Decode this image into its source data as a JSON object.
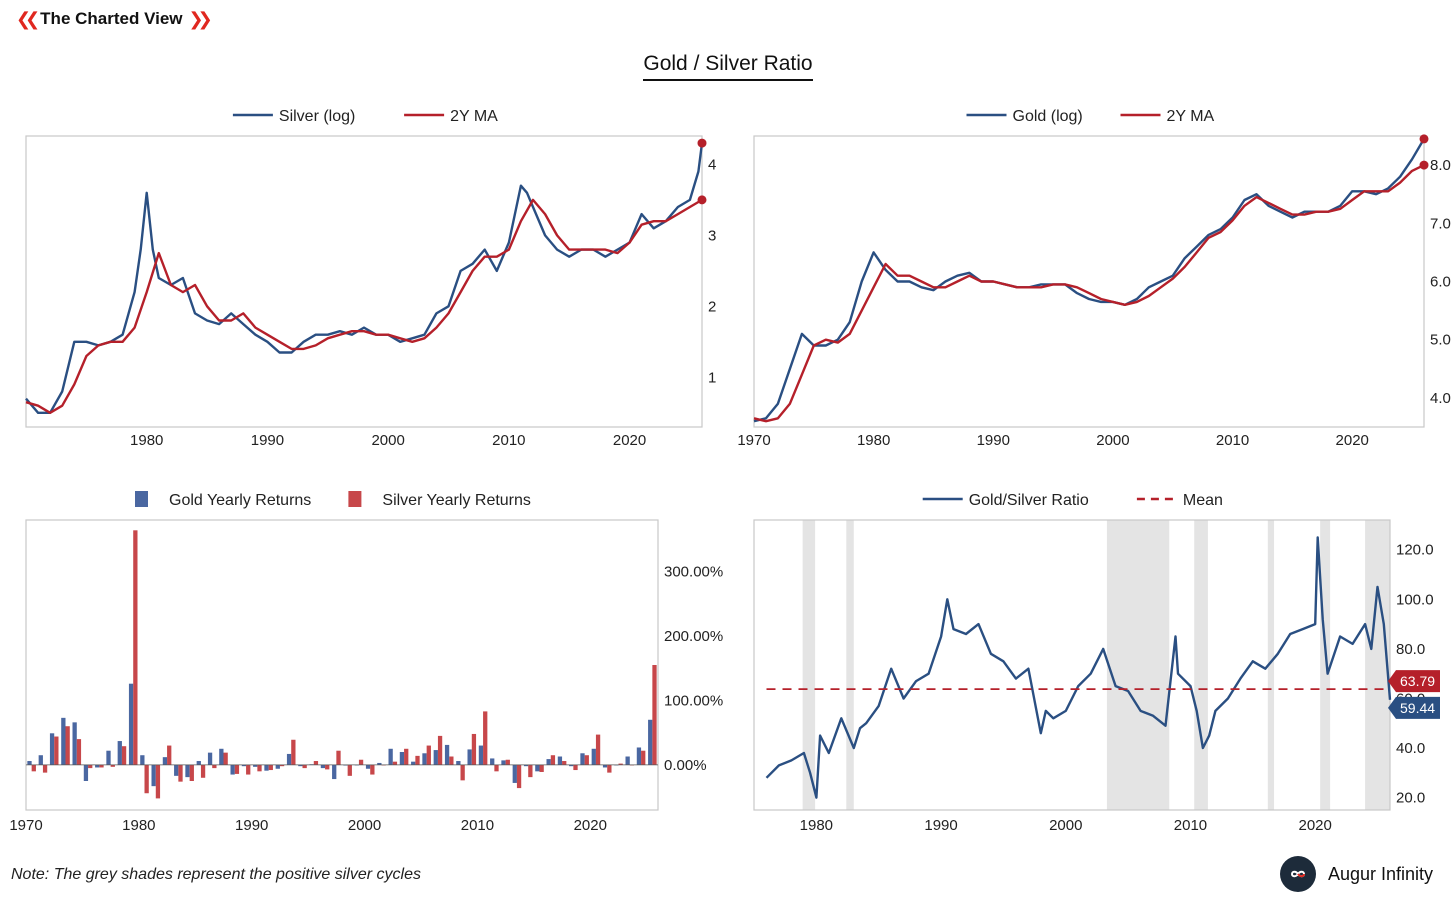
{
  "brand": {
    "name": "The Charted View",
    "accent": "#e0271f"
  },
  "title": "Gold / Silver Ratio",
  "note": "Note: The grey shades represent the positive silver cycles",
  "logo": {
    "name": "Augur Infinity"
  },
  "colors": {
    "blue": "#2a4f82",
    "red": "#b5202a",
    "bar_blue": "#4a67a1",
    "bar_red": "#c7474a",
    "shade": "#e4e4e4",
    "frame": "#c8c8c8"
  },
  "chart_data": [
    {
      "type": "line",
      "legend": [
        "Silver (log)",
        "2Y MA"
      ],
      "xlim": [
        1970,
        2026
      ],
      "ylim": [
        0.3,
        4.4
      ],
      "xticks": [
        1980,
        1990,
        2000,
        2010,
        2020
      ],
      "yticks": [
        1,
        2,
        3,
        4
      ],
      "grid": false,
      "legend_position": "top-center",
      "series": [
        {
          "name": "Silver (log)",
          "x": [
            1970,
            1971,
            1972,
            1973,
            1974,
            1975,
            1976,
            1977,
            1978,
            1979,
            1979.5,
            1980,
            1980.5,
            1981,
            1982,
            1983,
            1984,
            1985,
            1986,
            1987,
            1988,
            1989,
            1990,
            1991,
            1992,
            1993,
            1994,
            1995,
            1996,
            1997,
            1998,
            1999,
            2000,
            2001,
            2002,
            2003,
            2004,
            2005,
            2006,
            2007,
            2008,
            2009,
            2010,
            2011,
            2011.5,
            2012,
            2013,
            2014,
            2015,
            2016,
            2017,
            2018,
            2019,
            2020,
            2021,
            2022,
            2023,
            2024,
            2025,
            2025.7,
            2026
          ],
          "values": [
            0.7,
            0.5,
            0.5,
            0.8,
            1.5,
            1.5,
            1.45,
            1.5,
            1.6,
            2.2,
            2.8,
            3.6,
            2.8,
            2.4,
            2.3,
            2.4,
            1.9,
            1.8,
            1.75,
            1.9,
            1.75,
            1.6,
            1.5,
            1.35,
            1.35,
            1.5,
            1.6,
            1.6,
            1.65,
            1.6,
            1.7,
            1.6,
            1.6,
            1.5,
            1.55,
            1.6,
            1.9,
            2.0,
            2.5,
            2.6,
            2.8,
            2.5,
            2.9,
            3.7,
            3.6,
            3.4,
            3.0,
            2.8,
            2.7,
            2.8,
            2.8,
            2.7,
            2.8,
            2.9,
            3.3,
            3.1,
            3.2,
            3.4,
            3.5,
            3.9,
            4.3
          ]
        },
        {
          "name": "2Y MA",
          "x": [
            1970,
            1971,
            1972,
            1973,
            1974,
            1975,
            1976,
            1977,
            1978,
            1979,
            1980,
            1981,
            1982,
            1983,
            1984,
            1985,
            1986,
            1987,
            1988,
            1989,
            1990,
            1991,
            1992,
            1993,
            1994,
            1995,
            1996,
            1997,
            1998,
            1999,
            2000,
            2001,
            2002,
            2003,
            2004,
            2005,
            2006,
            2007,
            2008,
            2009,
            2010,
            2011,
            2012,
            2013,
            2014,
            2015,
            2016,
            2017,
            2018,
            2019,
            2020,
            2021,
            2022,
            2023,
            2024,
            2025,
            2026
          ],
          "values": [
            0.65,
            0.6,
            0.5,
            0.6,
            0.9,
            1.3,
            1.45,
            1.5,
            1.5,
            1.7,
            2.2,
            2.75,
            2.3,
            2.2,
            2.3,
            2.0,
            1.8,
            1.8,
            1.9,
            1.7,
            1.6,
            1.5,
            1.4,
            1.4,
            1.45,
            1.55,
            1.6,
            1.65,
            1.65,
            1.6,
            1.6,
            1.55,
            1.5,
            1.55,
            1.7,
            1.9,
            2.2,
            2.5,
            2.7,
            2.7,
            2.8,
            3.2,
            3.5,
            3.3,
            3.0,
            2.8,
            2.8,
            2.8,
            2.8,
            2.75,
            2.9,
            3.15,
            3.2,
            3.2,
            3.3,
            3.4,
            3.5
          ]
        }
      ]
    },
    {
      "type": "line",
      "legend": [
        "Gold (log)",
        "2Y MA"
      ],
      "xlim": [
        1970,
        2026
      ],
      "ylim": [
        3.5,
        8.5
      ],
      "xticks": [
        1970,
        1980,
        1990,
        2000,
        2010,
        2020
      ],
      "yticks": [
        "4.0",
        "5.0",
        "6.0",
        "7.0",
        "8.0"
      ],
      "grid": false,
      "legend_position": "top-center",
      "series": [
        {
          "name": "Gold (log)",
          "x": [
            1970,
            1971,
            1972,
            1973,
            1974,
            1975,
            1976,
            1977,
            1978,
            1979,
            1980,
            1981,
            1982,
            1983,
            1984,
            1985,
            1986,
            1987,
            1988,
            1989,
            1990,
            1991,
            1992,
            1993,
            1994,
            1995,
            1996,
            1997,
            1998,
            1999,
            2000,
            2001,
            2002,
            2003,
            2004,
            2005,
            2006,
            2007,
            2008,
            2009,
            2010,
            2011,
            2012,
            2013,
            2014,
            2015,
            2016,
            2017,
            2018,
            2019,
            2020,
            2021,
            2022,
            2023,
            2024,
            2025,
            2026
          ],
          "values": [
            3.6,
            3.65,
            3.9,
            4.5,
            5.1,
            4.9,
            4.9,
            5.0,
            5.3,
            6.0,
            6.5,
            6.2,
            6.0,
            6.0,
            5.9,
            5.85,
            6.0,
            6.1,
            6.15,
            6.0,
            6.0,
            5.95,
            5.9,
            5.9,
            5.95,
            5.95,
            5.95,
            5.8,
            5.7,
            5.65,
            5.65,
            5.6,
            5.7,
            5.9,
            6.0,
            6.1,
            6.4,
            6.6,
            6.8,
            6.9,
            7.1,
            7.4,
            7.5,
            7.3,
            7.2,
            7.1,
            7.2,
            7.2,
            7.2,
            7.3,
            7.55,
            7.55,
            7.5,
            7.6,
            7.8,
            8.1,
            8.45
          ]
        },
        {
          "name": "2Y MA",
          "x": [
            1970,
            1971,
            1972,
            1973,
            1974,
            1975,
            1976,
            1977,
            1978,
            1979,
            1980,
            1981,
            1982,
            1983,
            1984,
            1985,
            1986,
            1987,
            1988,
            1989,
            1990,
            1991,
            1992,
            1993,
            1994,
            1995,
            1996,
            1997,
            1998,
            1999,
            2000,
            2001,
            2002,
            2003,
            2004,
            2005,
            2006,
            2007,
            2008,
            2009,
            2010,
            2011,
            2012,
            2013,
            2014,
            2015,
            2016,
            2017,
            2018,
            2019,
            2020,
            2021,
            2022,
            2023,
            2024,
            2025,
            2026
          ],
          "values": [
            3.65,
            3.6,
            3.65,
            3.9,
            4.4,
            4.9,
            5.0,
            4.95,
            5.1,
            5.5,
            5.9,
            6.3,
            6.1,
            6.1,
            6.0,
            5.9,
            5.9,
            6.0,
            6.1,
            6.0,
            6.0,
            5.95,
            5.9,
            5.9,
            5.9,
            5.95,
            5.95,
            5.9,
            5.8,
            5.7,
            5.65,
            5.6,
            5.65,
            5.75,
            5.9,
            6.05,
            6.25,
            6.5,
            6.75,
            6.85,
            7.05,
            7.3,
            7.45,
            7.35,
            7.25,
            7.15,
            7.15,
            7.2,
            7.2,
            7.25,
            7.4,
            7.55,
            7.55,
            7.55,
            7.7,
            7.9,
            8.0
          ]
        }
      ]
    },
    {
      "type": "bar",
      "legend": [
        "Gold Yearly Returns",
        "Silver Yearly Returns"
      ],
      "xlim": [
        1970,
        2026
      ],
      "ylim": [
        -70,
        380
      ],
      "xticks": [
        1970,
        1980,
        1990,
        2000,
        2010,
        2020
      ],
      "yticks": [
        "0.00%",
        "100.00%",
        "200.00%",
        "300.00%"
      ],
      "grid": false,
      "legend_position": "top-center",
      "categories": [
        1970,
        1971,
        1972,
        1973,
        1974,
        1975,
        1976,
        1977,
        1978,
        1979,
        1980,
        1981,
        1982,
        1983,
        1984,
        1985,
        1986,
        1987,
        1988,
        1989,
        1990,
        1991,
        1992,
        1993,
        1994,
        1995,
        1996,
        1997,
        1998,
        1999,
        2000,
        2001,
        2002,
        2003,
        2004,
        2005,
        2006,
        2007,
        2008,
        2009,
        2010,
        2011,
        2012,
        2013,
        2014,
        2015,
        2016,
        2017,
        2018,
        2019,
        2020,
        2021,
        2022,
        2023,
        2024,
        2025
      ],
      "series": [
        {
          "name": "Gold Yearly Returns",
          "values": [
            6,
            15,
            49,
            73,
            66,
            -25,
            -4,
            22,
            37,
            126,
            15,
            -33,
            12,
            -17,
            -19,
            6,
            19,
            25,
            -15,
            -2,
            -3,
            -9,
            -6,
            17,
            -2,
            1,
            -5,
            -22,
            -1,
            0,
            -6,
            3,
            25,
            20,
            5,
            18,
            23,
            31,
            6,
            24,
            30,
            10,
            7,
            -28,
            -2,
            -10,
            9,
            13,
            -2,
            18,
            25,
            -4,
            0,
            13,
            27,
            70
          ],
          "display_x": [
            1970.0,
            1971.0,
            1972.0,
            1973.0,
            1974.0,
            1975.0,
            1976.0,
            1977.0,
            1978.0,
            1979.0,
            1980.0,
            1981.0,
            1982.0,
            1983.0,
            1984.0,
            1985.0,
            1986.0,
            1987.0,
            1988.0,
            1989.0,
            1990.0,
            1991.0,
            1992.0,
            1993.0,
            1994.0,
            1995.0,
            1996.0,
            1997.0,
            1998.0,
            1999.0,
            2000.0,
            2001.0,
            2002.0,
            2003.0,
            2004.0,
            2005.0,
            2006.0,
            2007.0,
            2008.0,
            2009.0,
            2010.0,
            2011.0,
            2012.0,
            2013.0,
            2014.0,
            2015.0,
            2016.0,
            2017.0,
            2018.0,
            2019.0,
            2020.0,
            2021.0,
            2022.0,
            2023.0,
            2024.0,
            2025.0
          ]
        },
        {
          "name": "Silver Yearly Returns",
          "values": [
            -10,
            -12,
            44,
            60,
            40,
            -5,
            -4,
            -3,
            29,
            364,
            -44,
            -52,
            30,
            -26,
            -25,
            -20,
            -5,
            19,
            -14,
            -15,
            -10,
            -8,
            -2,
            39,
            -5,
            6,
            -7,
            22,
            -17,
            8,
            -15,
            0,
            5,
            25,
            14,
            30,
            45,
            13,
            -24,
            48,
            83,
            -10,
            8,
            -36,
            -19,
            -11,
            15,
            6,
            -8,
            15,
            47,
            -12,
            2,
            0,
            22,
            155
          ]
        }
      ]
    },
    {
      "type": "line",
      "legend": [
        "Gold/Silver Ratio",
        "Mean"
      ],
      "xlim": [
        1975,
        2026
      ],
      "ylim": [
        15,
        132
      ],
      "xticks": [
        1980,
        1990,
        2000,
        2010,
        2020
      ],
      "yticks": [
        "20.0",
        "40.0",
        "60.0",
        "80.0",
        "100.0",
        "120.0"
      ],
      "grid": false,
      "legend_position": "top-center",
      "mean": 63.79,
      "end_labels": [
        "63.79",
        "59.44"
      ],
      "shaded_periods": [
        [
          1978.9,
          1979.9
        ],
        [
          1982.4,
          1983.0
        ],
        [
          2003.3,
          2008.3
        ],
        [
          2010.3,
          2011.4
        ],
        [
          2016.2,
          2016.7
        ],
        [
          2020.4,
          2021.2
        ],
        [
          2024.0,
          2026.0
        ]
      ],
      "series": [
        {
          "name": "Gold/Silver Ratio",
          "x": [
            1976,
            1977,
            1978,
            1979,
            1979.5,
            1980,
            1980.3,
            1981,
            1982,
            1983,
            1983.5,
            1984,
            1985,
            1986,
            1987,
            1988,
            1989,
            1990,
            1990.5,
            1991,
            1992,
            1993,
            1994,
            1995,
            1996,
            1997,
            1998,
            1998.4,
            1999,
            2000,
            2001,
            2002,
            2003,
            2004,
            2005,
            2006,
            2007,
            2008,
            2008.8,
            2009,
            2010,
            2010.5,
            2011,
            2011.5,
            2012,
            2013,
            2014,
            2015,
            2016,
            2017,
            2018,
            2019,
            2020,
            2020.2,
            2020.6,
            2021,
            2022,
            2023,
            2024,
            2024.5,
            2025,
            2025.5,
            2026
          ],
          "values": [
            28,
            33,
            35,
            38,
            30,
            20,
            45,
            38,
            52,
            40,
            48,
            50,
            57,
            72,
            60,
            67,
            70,
            85,
            100,
            88,
            86,
            90,
            78,
            75,
            68,
            72,
            46,
            55,
            52,
            55,
            65,
            70,
            80,
            65,
            63,
            55,
            53,
            49,
            85,
            70,
            65,
            55,
            40,
            45,
            55,
            60,
            68,
            75,
            72,
            78,
            86,
            88,
            90,
            125,
            92,
            70,
            85,
            82,
            90,
            80,
            105,
            90,
            59.44
          ]
        },
        {
          "name": "Mean",
          "x": [
            1976,
            2026
          ],
          "values": [
            63.79,
            63.79
          ]
        }
      ]
    }
  ]
}
